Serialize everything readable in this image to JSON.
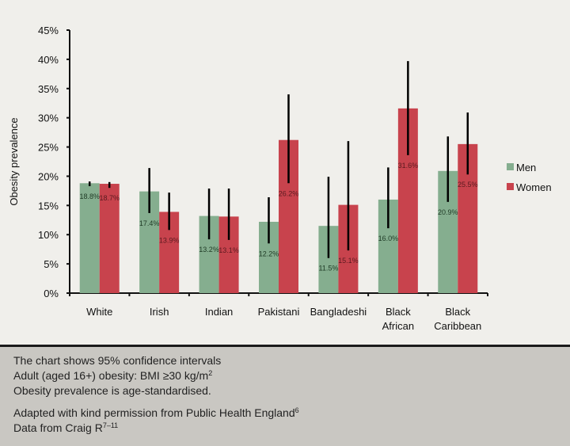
{
  "chart_data": {
    "type": "bar",
    "ylabel": "Obesity prevalence",
    "ylim": [
      0,
      45
    ],
    "yticks": [
      "0%",
      "5%",
      "10%",
      "15%",
      "20%",
      "25%",
      "30%",
      "35%",
      "40%",
      "45%"
    ],
    "categories": [
      [
        "White"
      ],
      [
        "Irish"
      ],
      [
        "Indian"
      ],
      [
        "Pakistani"
      ],
      [
        "Bangladeshi"
      ],
      [
        "Black",
        "African"
      ],
      [
        "Black",
        "Caribbean"
      ]
    ],
    "legend_position": "right",
    "grid": false,
    "series": [
      {
        "name": "Men",
        "color": "#85ae8f",
        "values": [
          18.8,
          17.4,
          13.2,
          12.2,
          11.5,
          16.0,
          20.9
        ],
        "labels": [
          "18.8%",
          "17.4%",
          "13.2%",
          "12.2%",
          "11.5%",
          "16.0%",
          "20.9%"
        ],
        "ci_low": [
          18.3,
          13.7,
          9.2,
          8.5,
          6.0,
          11.1,
          15.6
        ],
        "ci_high": [
          19.1,
          21.4,
          17.9,
          16.4,
          19.9,
          21.5,
          26.8
        ]
      },
      {
        "name": "Women",
        "color": "#c8434d",
        "values": [
          18.7,
          13.9,
          13.1,
          26.2,
          15.1,
          31.6,
          25.5
        ],
        "labels": [
          "18.7%",
          "13.9%",
          "13.1%",
          "26.2%",
          "15.1%",
          "31.6%",
          "25.5%"
        ],
        "ci_low": [
          18.0,
          10.8,
          9.1,
          18.8,
          7.3,
          23.6,
          20.3
        ],
        "ci_high": [
          19.0,
          17.2,
          17.9,
          34.0,
          26.0,
          39.7,
          30.9
        ]
      }
    ]
  },
  "notes": {
    "line1": "The chart shows 95% confidence intervals",
    "line2": "Adult (aged 16+) obesity: BMI ≥30 kg/m",
    "line2_sup": "2",
    "line3": "Obesity prevalence is age-standardised.",
    "line4": "Adapted with kind permission from Public Health England",
    "line4_sup": "6",
    "line5": "Data from Craig R",
    "line5_sup": "7–11"
  }
}
